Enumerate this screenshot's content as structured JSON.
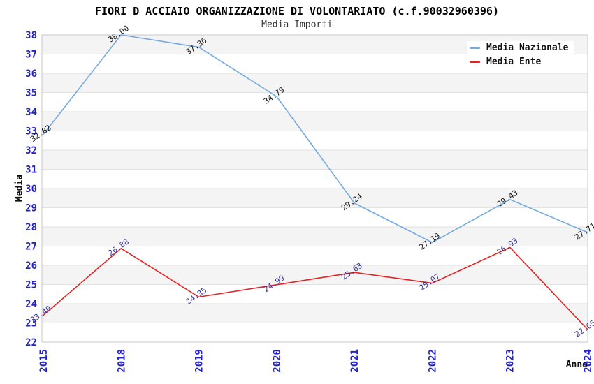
{
  "header": {
    "title": "FIORI D ACCIAIO ORGANIZZAZIONE DI VOLONTARIATO (c.f.90032960396)",
    "subtitle": "Media Importi"
  },
  "legend": {
    "items": [
      {
        "label": "Media Nazionale",
        "color": "#74aade"
      },
      {
        "label": "Media Ente",
        "color": "#e42222"
      }
    ]
  },
  "chart_data": {
    "type": "line",
    "title": "FIORI D ACCIAIO ORGANIZZAZIONE DI VOLONTARIATO (c.f.90032960396)",
    "subtitle": "Media Importi",
    "xlabel": "Anno",
    "ylabel": "Media",
    "categories": [
      "2015",
      "2018",
      "2019",
      "2020",
      "2021",
      "2022",
      "2023",
      "2024"
    ],
    "series": [
      {
        "name": "Media Nazionale",
        "color": "#74aade",
        "label_color": "#111111",
        "values": [
          32.82,
          38.0,
          37.36,
          34.79,
          29.24,
          27.19,
          29.43,
          27.71
        ]
      },
      {
        "name": "Media Ente",
        "color": "#e42222",
        "label_color": "#333399",
        "values": [
          23.4,
          26.88,
          24.35,
          24.99,
          25.63,
          25.07,
          26.93,
          22.65
        ]
      }
    ],
    "ylim": [
      22,
      38
    ],
    "ytick_step": 1,
    "grid": true,
    "band_shading": true,
    "legend_position": "top-right",
    "styles": {
      "tick_color": "#2222cc",
      "band_color": "#f4f4f4",
      "grid_color": "#e2e2e2",
      "border_color": "#c8c8c8",
      "label_font_px": 11,
      "tick_font_px": 14
    }
  }
}
